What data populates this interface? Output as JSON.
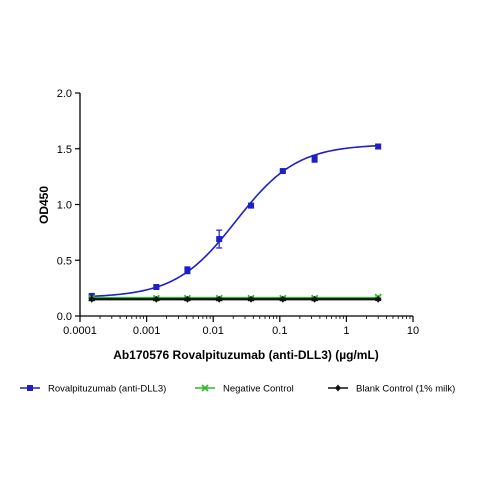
{
  "chart_data": {
    "type": "line",
    "xscale": "log",
    "xlabel": "Ab170576 Rovalpituzumab (anti-DLL3) (µg/mL)",
    "ylabel": "OD450",
    "xlim": [
      0.0001,
      10
    ],
    "ylim": [
      0,
      2.0
    ],
    "x_ticks": [
      0.0001,
      0.001,
      0.01,
      0.1,
      1,
      10
    ],
    "x_tick_labels": [
      "0.0001",
      "0.001",
      "0.01",
      "0.1",
      "1",
      "10"
    ],
    "y_ticks": [
      0,
      0.5,
      1.0,
      1.5,
      2.0
    ],
    "y_tick_labels": [
      "0.0",
      "0.5",
      "1.0",
      "1.5",
      "2.0"
    ],
    "grid": false,
    "legend_position": "bottom",
    "series": [
      {
        "name": "Rovalpituzumab (anti-DLL3)",
        "color": "#1f1fc8",
        "marker": "square",
        "fit": "4pl",
        "fit_params": {
          "bottom": 0.165,
          "top": 1.54,
          "ec50": 0.022,
          "hill": 0.95
        },
        "x": [
          0.00015,
          0.0014,
          0.0041,
          0.0123,
          0.037,
          0.111,
          0.333,
          3.0
        ],
        "y": [
          0.18,
          0.26,
          0.41,
          0.69,
          0.99,
          1.3,
          1.41,
          1.52
        ],
        "err": [
          0.01,
          0.01,
          0.03,
          0.08,
          0.02,
          0.01,
          0.03,
          0.02
        ]
      },
      {
        "name": "Negative Control",
        "color": "#2eb82e",
        "marker": "x",
        "fit": "flat",
        "x": [
          0.00015,
          0.0014,
          0.0041,
          0.0123,
          0.037,
          0.111,
          0.333,
          3.0
        ],
        "y": [
          0.16,
          0.16,
          0.16,
          0.16,
          0.16,
          0.16,
          0.16,
          0.17
        ],
        "err": [
          0.01,
          0.01,
          0.01,
          0.01,
          0.01,
          0.01,
          0.01,
          0.01
        ]
      },
      {
        "name": "Blank Control (1% milk)",
        "color": "#111111",
        "marker": "diamond",
        "fit": "flat",
        "x": [
          0.00015,
          0.0014,
          0.0041,
          0.0123,
          0.037,
          0.111,
          0.333,
          3.0
        ],
        "y": [
          0.15,
          0.15,
          0.15,
          0.15,
          0.15,
          0.15,
          0.15,
          0.15
        ],
        "err": [
          0.01,
          0.01,
          0.01,
          0.01,
          0.01,
          0.01,
          0.01,
          0.01
        ]
      }
    ]
  }
}
